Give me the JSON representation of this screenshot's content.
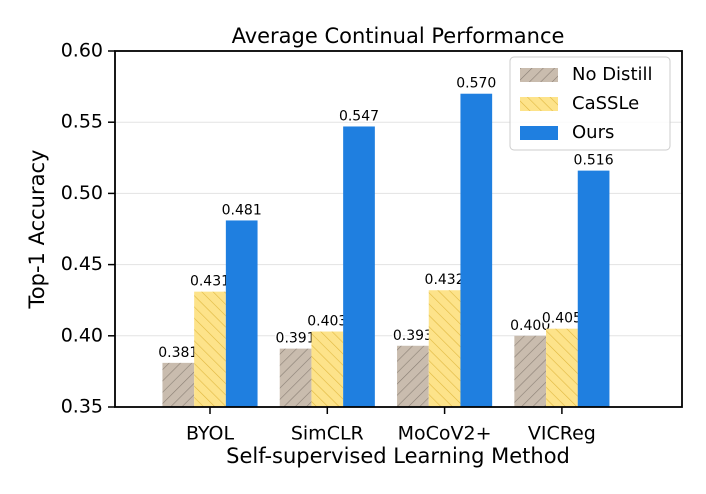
{
  "chart_data": {
    "type": "bar",
    "title": "Average Continual Performance",
    "x_label": "Self-supervised Learning Method",
    "y_label": "Top-1 Accuracy",
    "categories": [
      "BYOL",
      "SimCLR",
      "MoCoV2+",
      "VICReg"
    ],
    "series": [
      {
        "name": "No Distill",
        "color": "#c9bcae",
        "hatch_color": "#8a7f75",
        "values": [
          0.381,
          0.391,
          0.393,
          0.4
        ],
        "value_labels": [
          "0.381",
          "0.391",
          "0.393",
          "0.400"
        ]
      },
      {
        "name": "CaSSLe",
        "color": "#fde38a",
        "hatch_color": "#e0b840",
        "values": [
          0.431,
          0.403,
          0.432,
          0.405
        ],
        "value_labels": [
          "0.431",
          "0.403",
          "0.432",
          "0.405"
        ]
      },
      {
        "name": "Ours",
        "color": "#1f7fe0",
        "values": [
          0.481,
          0.547,
          0.57,
          0.516
        ],
        "value_labels": [
          "0.481",
          "0.547",
          "0.570",
          "0.516"
        ]
      }
    ],
    "ylim": [
      0.35,
      0.6
    ],
    "yticks": [
      0.35,
      {
        "value": 0.4,
        "label": "0.40"
      },
      0.45,
      {
        "value": 0.5,
        "label": "0.50"
      },
      0.55,
      {
        "value": 0.6,
        "label": "0.60"
      }
    ],
    "grid": true,
    "legend": "upper right"
  }
}
